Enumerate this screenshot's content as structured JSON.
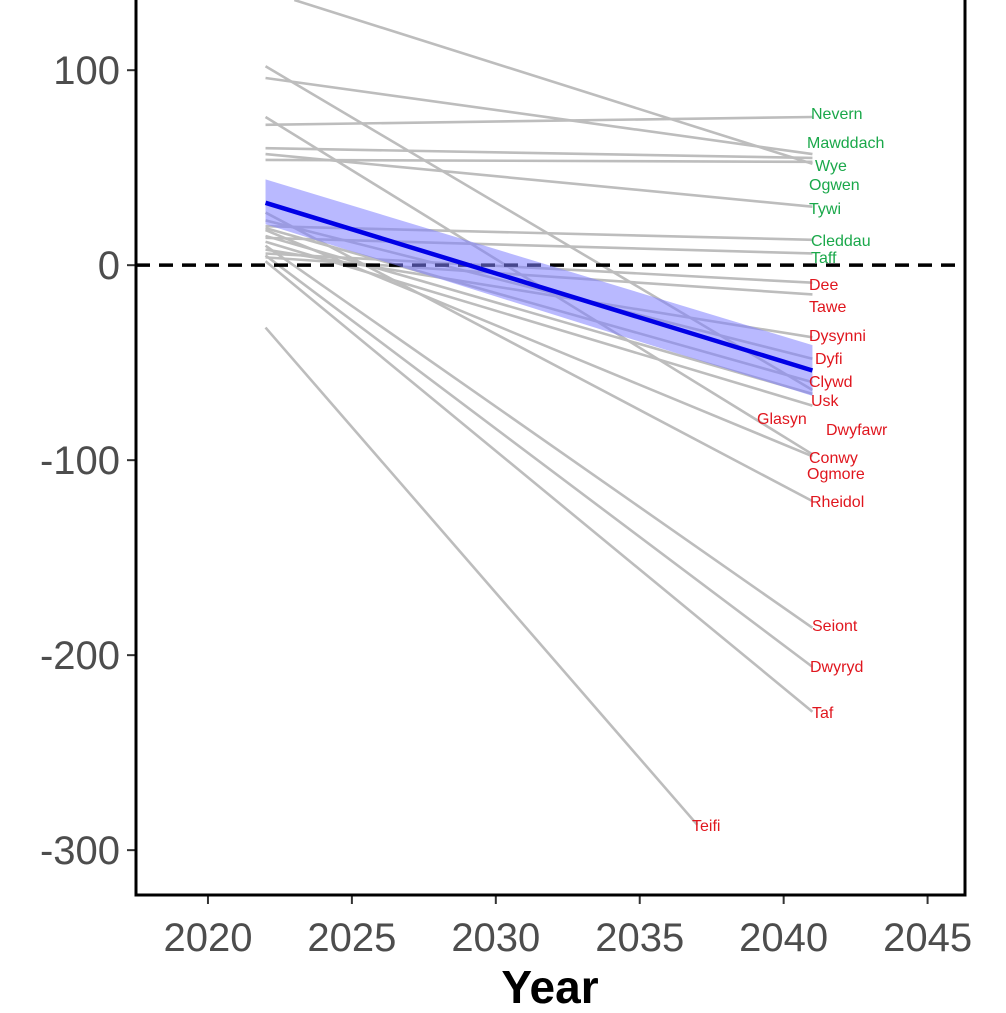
{
  "chart_data": {
    "type": "line",
    "title": "",
    "xlabel": "Year",
    "ylabel": "",
    "xlim": [
      2017.5,
      2046.3
    ],
    "ylim": [
      -323,
      136
    ],
    "x_ticks": [
      2020,
      2025,
      2030,
      2035,
      2040,
      2045
    ],
    "y_ticks": [
      100,
      0,
      -100,
      -200,
      -300
    ],
    "x_tick_labels": [
      "2020",
      "2025",
      "2030",
      "2035",
      "2040",
      "2045"
    ],
    "y_tick_labels": [
      "100",
      "0",
      "-100",
      "-200",
      "-300"
    ],
    "reference_line": {
      "y": 0,
      "style": "dashed",
      "color": "#000000"
    },
    "colors": {
      "river_line": "#bdbdbd",
      "trend_line": "#0000e6",
      "ribbon": "#8080ff",
      "positive_label": "#1aa84a",
      "negative_label": "#e0161e"
    },
    "trend": {
      "x": [
        2022,
        2041
      ],
      "y": [
        32,
        -54
      ],
      "ci_lower": [
        21,
        -67
      ],
      "ci_upper": [
        44,
        -41
      ]
    },
    "series": [
      {
        "name": "Nevern",
        "x": [
          2022,
          2041
        ],
        "y": [
          72,
          76
        ],
        "sign": "positive"
      },
      {
        "name": "Mawddach",
        "x": [
          2022,
          2041
        ],
        "y": [
          96,
          57
        ],
        "sign": "positive"
      },
      {
        "name": "Wye",
        "x": [
          2022,
          2041
        ],
        "y": [
          60,
          55
        ],
        "sign": "positive"
      },
      {
        "name": "Ogwen",
        "x": [
          2022,
          2041
        ],
        "y": [
          54,
          53
        ],
        "sign": "positive"
      },
      {
        "name": "Tywi",
        "x": [
          2022,
          2041
        ],
        "y": [
          57,
          30
        ],
        "sign": "positive"
      },
      {
        "name": "Cleddau",
        "x": [
          2022,
          2041
        ],
        "y": [
          20,
          13
        ],
        "sign": "positive"
      },
      {
        "name": "Taff",
        "x": [
          2022,
          2041
        ],
        "y": [
          14,
          6
        ],
        "sign": "positive"
      },
      {
        "name": "Dee",
        "x": [
          2022,
          2041
        ],
        "y": [
          6,
          -9
        ],
        "sign": "negative"
      },
      {
        "name": "Tawe",
        "x": [
          2022,
          2041
        ],
        "y": [
          4,
          -15
        ],
        "sign": "negative"
      },
      {
        "name": "Dysynni",
        "x": [
          2022,
          2041
        ],
        "y": [
          8,
          -37
        ],
        "sign": "negative"
      },
      {
        "name": "Dyfi",
        "x": [
          2022,
          2041
        ],
        "y": [
          23,
          -48
        ],
        "sign": "negative"
      },
      {
        "name": "Clywd",
        "x": [
          2022,
          2041
        ],
        "y": [
          19,
          -60
        ],
        "sign": "negative"
      },
      {
        "name": "Usk",
        "x": [
          2022,
          2041
        ],
        "y": [
          15,
          -66
        ],
        "sign": "negative"
      },
      {
        "name": "Glasyn",
        "x": [
          2022,
          2041
        ],
        "y": [
          12,
          -72
        ],
        "sign": "negative"
      },
      {
        "name": "Dwyfawr",
        "x": [
          2022,
          2041
        ],
        "y": [
          102,
          -64
        ],
        "sign": "negative"
      },
      {
        "name": "Conwy",
        "x": [
          2022,
          2041
        ],
        "y": [
          76,
          -97
        ],
        "sign": "negative"
      },
      {
        "name": "Ogmore",
        "x": [
          2022,
          2041
        ],
        "y": [
          18,
          -98
        ],
        "sign": "negative"
      },
      {
        "name": "Rheidol",
        "x": [
          2022,
          2041
        ],
        "y": [
          27,
          -121
        ],
        "sign": "negative"
      },
      {
        "name": "Seiont",
        "x": [
          2022,
          2041
        ],
        "y": [
          10,
          -186
        ],
        "sign": "negative"
      },
      {
        "name": "Dwyryd",
        "x": [
          2022,
          2041
        ],
        "y": [
          5,
          -206
        ],
        "sign": "negative"
      },
      {
        "name": "Taf",
        "x": [
          2022,
          2041
        ],
        "y": [
          2,
          -229
        ],
        "sign": "negative"
      },
      {
        "name": "Teifi",
        "x": [
          2022,
          2037
        ],
        "y": [
          -32,
          -287
        ],
        "sign": "negative"
      },
      {
        "name": "",
        "x": [
          2023,
          2041
        ],
        "y": [
          136,
          52
        ],
        "sign": "positive"
      }
    ]
  }
}
